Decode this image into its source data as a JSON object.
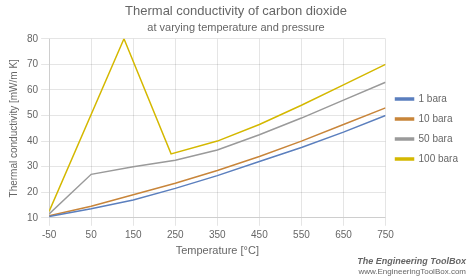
{
  "chart_data": {
    "type": "line",
    "title": "Thermal conductivity of carbon dioxide",
    "subtitle": "at varying temperature and pressure",
    "xlabel": "Temperature [°C]",
    "ylabel": "Thermal conductivity [mW/m K]",
    "xlim": [
      -50,
      750
    ],
    "ylim": [
      10,
      80
    ],
    "xticks": [
      -50,
      50,
      150,
      250,
      350,
      450,
      550,
      650,
      750
    ],
    "yticks": [
      10,
      20,
      30,
      40,
      50,
      60,
      70,
      80
    ],
    "grid": true,
    "legend": "right",
    "annotations": [
      "The Engineering ToolBox",
      "www.EngineeringToolBox.com"
    ],
    "series": [
      {
        "name": "1 bara",
        "color": "#5b7fbe",
        "x": [
          -50,
          50,
          150,
          250,
          350,
          450,
          550,
          650,
          750
        ],
        "values": [
          10.5,
          13.5,
          17.0,
          21.5,
          26.5,
          32.0,
          37.5,
          43.5,
          50.0
        ]
      },
      {
        "name": "10 bara",
        "color": "#c8853a",
        "x": [
          -50,
          50,
          150,
          250,
          350,
          450,
          550,
          650,
          750
        ],
        "values": [
          10.8,
          14.5,
          19.0,
          23.5,
          28.5,
          34.0,
          40.0,
          46.5,
          53.0
        ]
      },
      {
        "name": "50 bara",
        "color": "#9a9a9a",
        "x": [
          -50,
          50,
          150,
          250,
          350,
          450,
          550,
          650,
          750
        ],
        "values": [
          11.5,
          27.0,
          30.0,
          32.5,
          36.5,
          42.5,
          49.0,
          56.0,
          63.0
        ]
      },
      {
        "name": "100 bara",
        "color": "#d4b800",
        "x": [
          -50,
          128,
          240,
          350,
          450,
          550,
          650,
          750
        ],
        "values": [
          12.5,
          80,
          35.0,
          40.0,
          46.5,
          54.0,
          62.0,
          70.0
        ]
      }
    ]
  }
}
